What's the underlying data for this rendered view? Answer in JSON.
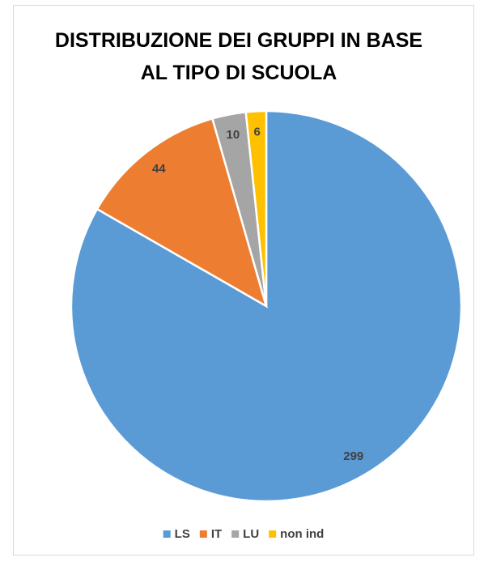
{
  "chart_data": {
    "type": "pie",
    "title": "DISTRIBUZIONE DEI GRUPPI IN BASE AL TIPO DI SCUOLA",
    "categories": [
      "LS",
      "IT",
      "LU",
      "non ind"
    ],
    "values": [
      299,
      44,
      10,
      6
    ],
    "colors": [
      "#5b9bd5",
      "#ed7d31",
      "#a5a5a5",
      "#ffc000"
    ],
    "legend": "bottom"
  }
}
